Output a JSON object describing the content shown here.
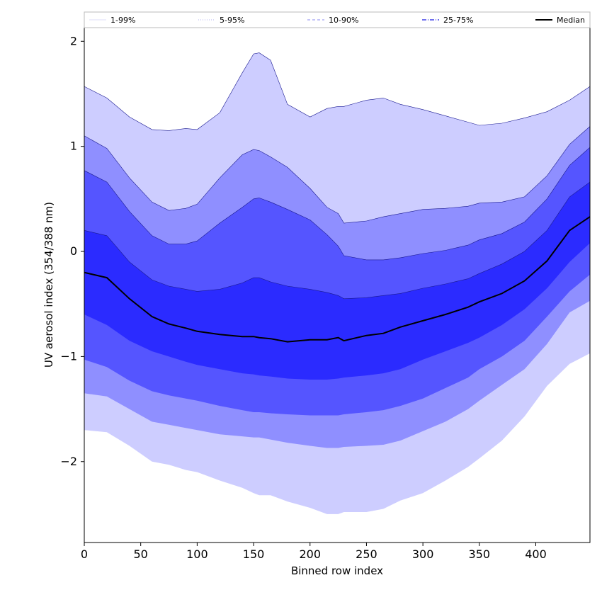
{
  "chart_data": {
    "type": "area",
    "xlabel": "Binned row index",
    "ylabel": "UV aerosol index (354/388 nm)",
    "xlim": [
      0,
      448
    ],
    "ylim": [
      -2.77,
      2.13
    ],
    "xticks": [
      0,
      50,
      100,
      150,
      200,
      250,
      300,
      350,
      400
    ],
    "yticks": [
      -2,
      -1,
      0,
      1,
      2
    ],
    "ytick_labels": [
      "−2",
      "−1",
      "0",
      "1",
      "2"
    ],
    "legend": {
      "placement": "top, above plot",
      "entries": [
        {
          "label": "1-99%",
          "color": "#dcdcf8",
          "style": "thin"
        },
        {
          "label": "5-95%",
          "color": "#b0b0f0",
          "style": "dotted"
        },
        {
          "label": "10-90%",
          "color": "#8a8af0",
          "style": "dashed"
        },
        {
          "label": "25-75%",
          "color": "#4040e8",
          "style": "dashdot"
        },
        {
          "label": "Median",
          "color": "#000000",
          "style": "solid"
        }
      ]
    },
    "x": [
      0,
      20,
      40,
      60,
      75,
      90,
      100,
      120,
      140,
      150,
      155,
      165,
      180,
      200,
      215,
      225,
      230,
      250,
      265,
      280,
      300,
      320,
      340,
      350,
      370,
      390,
      410,
      430,
      448
    ],
    "bands": [
      {
        "name": "1-99%",
        "color": "#cdcdff",
        "upper": [
          1.57,
          1.46,
          1.28,
          1.16,
          1.15,
          1.17,
          1.16,
          1.32,
          1.7,
          1.88,
          1.89,
          1.82,
          1.4,
          1.28,
          1.36,
          1.38,
          1.38,
          1.44,
          1.46,
          1.4,
          1.35,
          1.29,
          1.23,
          1.2,
          1.22,
          1.27,
          1.33,
          1.44,
          1.57
        ],
        "lower": [
          -1.7,
          -1.72,
          -1.85,
          -2.0,
          -2.03,
          -2.08,
          -2.1,
          -2.18,
          -2.25,
          -2.3,
          -2.32,
          -2.32,
          -2.38,
          -2.44,
          -2.5,
          -2.5,
          -2.48,
          -2.48,
          -2.45,
          -2.37,
          -2.3,
          -2.18,
          -2.05,
          -1.97,
          -1.8,
          -1.57,
          -1.28,
          -1.07,
          -0.97
        ]
      },
      {
        "name": "5-95%",
        "color": "#8f8fff",
        "upper": [
          1.1,
          0.98,
          0.7,
          0.47,
          0.39,
          0.41,
          0.45,
          0.7,
          0.92,
          0.97,
          0.96,
          0.9,
          0.8,
          0.6,
          0.42,
          0.36,
          0.27,
          0.29,
          0.33,
          0.36,
          0.4,
          0.41,
          0.43,
          0.46,
          0.47,
          0.52,
          0.72,
          1.02,
          1.19
        ]
      },
      {
        "name": "10-90%",
        "color": "#5555ff",
        "upper": [
          0.77,
          0.66,
          0.38,
          0.15,
          0.07,
          0.07,
          0.1,
          0.27,
          0.42,
          0.5,
          0.51,
          0.47,
          0.4,
          0.3,
          0.16,
          0.05,
          -0.04,
          -0.08,
          -0.08,
          -0.06,
          -0.02,
          0.01,
          0.06,
          0.11,
          0.17,
          0.28,
          0.5,
          0.82,
          0.99
        ]
      },
      {
        "name": "25-75%",
        "color": "#2b2bff",
        "upper": [
          0.2,
          0.15,
          -0.1,
          -0.27,
          -0.33,
          -0.36,
          -0.38,
          -0.36,
          -0.3,
          -0.25,
          -0.25,
          -0.29,
          -0.33,
          -0.36,
          -0.39,
          -0.42,
          -0.45,
          -0.44,
          -0.42,
          -0.4,
          -0.35,
          -0.31,
          -0.26,
          -0.21,
          -0.12,
          0.0,
          0.2,
          0.52,
          0.66
        ]
      }
    ],
    "lower_bands": [
      {
        "name": "25-75% low",
        "color": "#2b2bff",
        "lower": [
          -0.6,
          -0.7,
          -0.85,
          -0.95,
          -1.0,
          -1.05,
          -1.08,
          -1.12,
          -1.16,
          -1.17,
          -1.18,
          -1.19,
          -1.21,
          -1.22,
          -1.22,
          -1.21,
          -1.2,
          -1.18,
          -1.16,
          -1.12,
          -1.03,
          -0.95,
          -0.87,
          -0.82,
          -0.7,
          -0.55,
          -0.35,
          -0.1,
          0.08
        ]
      },
      {
        "name": "10-90% low",
        "color": "#5555ff",
        "lower": [
          -1.03,
          -1.1,
          -1.23,
          -1.33,
          -1.37,
          -1.4,
          -1.42,
          -1.47,
          -1.51,
          -1.53,
          -1.53,
          -1.54,
          -1.55,
          -1.56,
          -1.56,
          -1.56,
          -1.55,
          -1.53,
          -1.51,
          -1.47,
          -1.4,
          -1.3,
          -1.2,
          -1.12,
          -1.0,
          -0.85,
          -0.62,
          -0.38,
          -0.22
        ]
      },
      {
        "name": "5-95% low",
        "color": "#8f8fff",
        "lower": [
          -1.35,
          -1.38,
          -1.5,
          -1.62,
          -1.65,
          -1.68,
          -1.7,
          -1.74,
          -1.76,
          -1.77,
          -1.77,
          -1.79,
          -1.82,
          -1.85,
          -1.87,
          -1.87,
          -1.86,
          -1.85,
          -1.84,
          -1.8,
          -1.71,
          -1.62,
          -1.5,
          -1.42,
          -1.27,
          -1.12,
          -0.88,
          -0.58,
          -0.47
        ]
      }
    ],
    "median": {
      "name": "Median",
      "values": [
        -0.2,
        -0.25,
        -0.45,
        -0.62,
        -0.69,
        -0.73,
        -0.76,
        -0.79,
        -0.81,
        -0.81,
        -0.82,
        -0.83,
        -0.86,
        -0.84,
        -0.84,
        -0.82,
        -0.85,
        -0.8,
        -0.78,
        -0.72,
        -0.66,
        -0.6,
        -0.53,
        -0.48,
        -0.4,
        -0.28,
        -0.09,
        0.2,
        0.33
      ]
    }
  }
}
